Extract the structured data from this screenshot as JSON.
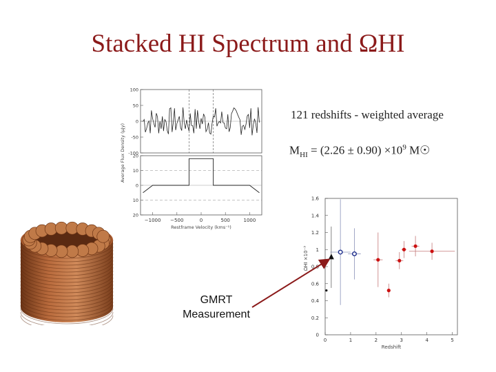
{
  "slide": {
    "title": "Stacked HI Spectrum and ΩHI",
    "note_redshifts": "121 redshifts - weighted average",
    "mass_prefix": "M",
    "mass_sub": "HI",
    "mass_mid": " = (2.26 ± 0.90) ×10",
    "mass_exp": "9",
    "mass_unit": " M☉",
    "gmrt_line1": "GMRT",
    "gmrt_line2": "Measurement"
  },
  "colors": {
    "title": "#8b1a1a",
    "arrow": "#8b1a1a",
    "red_points": "#cc1111",
    "blue_points": "#1a2a8a"
  },
  "chart_data": [
    {
      "type": "line",
      "panel": "stacked-spectrum",
      "ylabel": "Average Flux Density (μJy)",
      "xlabel": "Restframe Velocity (kms⁻¹)",
      "xlim": [
        -1250,
        1250
      ],
      "xticks": [
        "-1000",
        "-500",
        "0",
        "500",
        "1000"
      ],
      "upper_yticks": [
        "100",
        "50",
        "0",
        "-50",
        "-100"
      ],
      "lower_yticks": [
        "20",
        "10",
        "0",
        "10",
        "20"
      ],
      "grid": false,
      "noise_amplitude": 50,
      "bins": {
        "edges": [
          -1000,
          -250,
          250,
          1000
        ],
        "values": [
          0,
          18,
          0
        ]
      }
    },
    {
      "type": "scatter",
      "panel": "omega-hi-vs-redshift",
      "ylabel": "ΩHI ×10⁻³",
      "xlabel": "Redshift",
      "xlim": [
        0,
        5.2
      ],
      "ylim": [
        0,
        1.6
      ],
      "xticks": [
        "0",
        "1",
        "2",
        "3",
        "4",
        "5"
      ],
      "yticks": [
        "1.6",
        "1.4",
        "1.2",
        "1",
        "0.8",
        "0.6",
        "0.4",
        "0.2",
        "0"
      ],
      "series": [
        {
          "marker": "triangle",
          "points": [
            {
              "x": 0.24,
              "y": 0.91,
              "xerr": 0.0,
              "yerr": 0.36
            }
          ]
        },
        {
          "marker": "dot",
          "points": [
            {
              "x": 0.05,
              "y": 0.52
            }
          ]
        },
        {
          "marker": "open-circle",
          "points": [
            {
              "x": 0.6,
              "y": 0.97,
              "xerr": 0.4,
              "yerr": 0.62
            },
            {
              "x": 1.15,
              "y": 0.95,
              "xerr": 0.25,
              "yerr": 0.3
            }
          ]
        },
        {
          "marker": "filled-circle",
          "points": [
            {
              "x": 2.08,
              "y": 0.88,
              "xerr": 0.18,
              "yerr": 0.32
            },
            {
              "x": 2.5,
              "y": 0.52,
              "xerr": 0.05,
              "yerr": 0.08
            },
            {
              "x": 2.92,
              "y": 0.87,
              "xerr": 0.15,
              "yerr": 0.1
            },
            {
              "x": 3.1,
              "y": 1.0,
              "xerr": 0.1,
              "yerr": 0.1
            },
            {
              "x": 3.55,
              "y": 1.04,
              "xerr": 0.15,
              "yerr": 0.12
            },
            {
              "x": 4.2,
              "y": 0.98,
              "xerr": 0.9,
              "yerr": 0.1
            }
          ]
        }
      ]
    }
  ]
}
